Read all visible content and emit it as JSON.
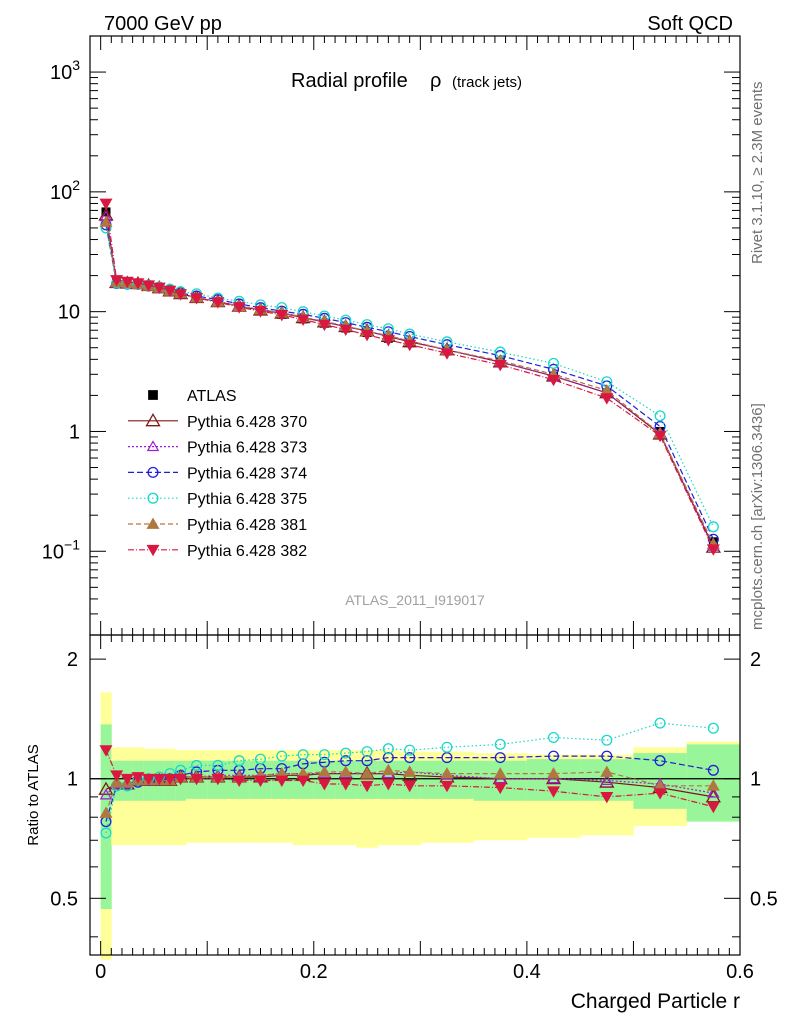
{
  "header": {
    "left": "7000 GeV pp",
    "right": "Soft QCD"
  },
  "side_labels": {
    "rivet": "Rivet 3.1.10, ≥ 2.3M events",
    "mcplots": "mcplots.cern.ch [arXiv:1306.3436]"
  },
  "chart_data": [
    {
      "type": "line",
      "panel": "main",
      "title": "Radial profile",
      "title_symbol": "ρ",
      "title_suffix": "(track jets)",
      "analysis_label": "ATLAS_2011_I919017",
      "yscale": "log",
      "xlim": [
        -0.01,
        0.6
      ],
      "ylim": [
        0.02,
        2000
      ],
      "ytick_labels": [
        {
          "value": 1000,
          "base": "10",
          "exp": "3"
        },
        {
          "value": 100,
          "base": "10",
          "exp": "2"
        },
        {
          "value": 10,
          "base": "10",
          "exp": ""
        },
        {
          "value": 1,
          "base": "1",
          "exp": ""
        },
        {
          "value": 0.1,
          "base": "10",
          "exp": "−1"
        }
      ],
      "x": [
        0.005,
        0.015,
        0.025,
        0.035,
        0.045,
        0.055,
        0.065,
        0.075,
        0.09,
        0.11,
        0.13,
        0.15,
        0.17,
        0.19,
        0.21,
        0.23,
        0.25,
        0.27,
        0.29,
        0.325,
        0.375,
        0.425,
        0.475,
        0.525,
        0.575
      ],
      "series": [
        {
          "name": "ATLAS",
          "color": "#000000",
          "marker": "filled-square",
          "dash": "none",
          "values": [
            68,
            18,
            17.8,
            17.2,
            16.6,
            15.9,
            15.0,
            14.0,
            13.0,
            12.0,
            11.0,
            10.2,
            9.5,
            8.7,
            8.0,
            7.3,
            6.7,
            6.0,
            5.5,
            4.7,
            3.8,
            2.9,
            2.1,
            1.0,
            0.12
          ]
        },
        {
          "name": "Pythia 6.428 370",
          "color": "#7f1818",
          "marker": "open-triangle-up",
          "dash": "none",
          "values": [
            64,
            17.5,
            17.3,
            17.1,
            16.5,
            15.8,
            14.9,
            14.1,
            13.1,
            12.1,
            11.1,
            10.3,
            9.7,
            8.9,
            8.2,
            7.5,
            6.9,
            6.2,
            5.6,
            4.8,
            3.8,
            2.9,
            2.1,
            0.95,
            0.108
          ]
        },
        {
          "name": "Pythia 6.428 373",
          "color": "#9b1fd8",
          "marker": "open-triangle-up-small",
          "dash": "2,2",
          "values": [
            62,
            17.4,
            17.2,
            17.0,
            16.4,
            15.8,
            14.9,
            14.1,
            13.1,
            12.2,
            11.2,
            10.4,
            9.8,
            9.0,
            8.2,
            7.5,
            6.9,
            6.2,
            5.7,
            4.8,
            3.8,
            2.9,
            2.1,
            0.97,
            0.11
          ]
        },
        {
          "name": "Pythia 6.428 374",
          "color": "#1f1fd8",
          "marker": "open-circle",
          "dash": "6,3",
          "values": [
            53,
            17.2,
            17.0,
            16.9,
            16.4,
            15.8,
            15.0,
            14.3,
            13.5,
            12.6,
            11.6,
            10.8,
            10.1,
            9.5,
            8.8,
            8.1,
            7.4,
            6.8,
            6.2,
            5.3,
            4.3,
            3.3,
            2.4,
            1.1,
            0.126
          ]
        },
        {
          "name": "Pythia 6.428 375",
          "color": "#18d8c8",
          "marker": "open-circle",
          "dash": "1.5,2.5",
          "values": [
            50,
            17.3,
            17.1,
            17.0,
            16.6,
            16.1,
            15.4,
            14.7,
            14.1,
            13.0,
            12.2,
            11.4,
            10.8,
            10.0,
            9.2,
            8.5,
            7.8,
            7.2,
            6.5,
            5.6,
            4.6,
            3.7,
            2.6,
            1.35,
            0.16
          ]
        },
        {
          "name": "Pythia 6.428 381",
          "color": "#b07840",
          "marker": "filled-triangle-up",
          "dash": "5,3",
          "values": [
            56,
            17.6,
            17.4,
            17.0,
            16.4,
            15.8,
            14.9,
            14.2,
            13.1,
            12.1,
            11.1,
            10.4,
            9.8,
            9.0,
            8.3,
            7.6,
            6.9,
            6.3,
            5.7,
            4.8,
            3.9,
            3.0,
            2.2,
            0.96,
            0.115
          ]
        },
        {
          "name": "Pythia 6.428 382",
          "color": "#d81840",
          "marker": "filled-triangle-down",
          "dash": "6,2,1,2",
          "values": [
            80,
            18.4,
            17.8,
            17.3,
            16.6,
            15.9,
            15.0,
            14.0,
            13.0,
            12.0,
            10.9,
            10.1,
            9.4,
            8.6,
            7.8,
            7.1,
            6.4,
            5.8,
            5.3,
            4.5,
            3.6,
            2.7,
            1.9,
            0.92,
            0.104
          ]
        }
      ],
      "legend_position": "left-middle"
    },
    {
      "type": "line",
      "panel": "ratio",
      "ylabel": "Ratio to ATLAS",
      "xlabel": "Charged Particle r",
      "xlim": [
        -0.01,
        0.6
      ],
      "ylim": [
        0.36,
        2.3
      ],
      "yscale": "log",
      "ytick_labels": [
        {
          "value": 2,
          "label": "2"
        },
        {
          "value": 1,
          "label": "1"
        },
        {
          "value": 0.5,
          "label": "0.5"
        }
      ],
      "xtick_labels": [
        {
          "value": 0,
          "label": "0"
        },
        {
          "value": 0.2,
          "label": "0.2"
        },
        {
          "value": 0.4,
          "label": "0.4"
        },
        {
          "value": 0.6,
          "label": "0.6"
        }
      ],
      "bin_edges": [
        0.0,
        0.01,
        0.02,
        0.03,
        0.04,
        0.05,
        0.06,
        0.07,
        0.08,
        0.1,
        0.12,
        0.14,
        0.16,
        0.18,
        0.2,
        0.22,
        0.24,
        0.26,
        0.28,
        0.3,
        0.35,
        0.4,
        0.45,
        0.5,
        0.55,
        0.6
      ],
      "band_yellow": {
        "lo": [
          0.35,
          0.68,
          0.68,
          0.68,
          0.68,
          0.68,
          0.68,
          0.68,
          0.69,
          0.69,
          0.69,
          0.69,
          0.69,
          0.68,
          0.68,
          0.68,
          0.67,
          0.68,
          0.68,
          0.69,
          0.7,
          0.71,
          0.72,
          0.76,
          0.78
        ],
        "hi": [
          1.65,
          1.2,
          1.2,
          1.2,
          1.19,
          1.19,
          1.19,
          1.18,
          1.18,
          1.18,
          1.18,
          1.18,
          1.18,
          1.18,
          1.18,
          1.18,
          1.18,
          1.18,
          1.17,
          1.17,
          1.16,
          1.15,
          1.15,
          1.2,
          1.24
        ]
      },
      "band_green": {
        "lo": [
          0.47,
          0.88,
          0.88,
          0.88,
          0.88,
          0.88,
          0.88,
          0.88,
          0.89,
          0.89,
          0.89,
          0.89,
          0.89,
          0.89,
          0.89,
          0.89,
          0.89,
          0.89,
          0.89,
          0.89,
          0.88,
          0.88,
          0.88,
          0.84,
          0.78
        ],
        "hi": [
          1.37,
          1.11,
          1.11,
          1.11,
          1.11,
          1.11,
          1.11,
          1.11,
          1.11,
          1.11,
          1.11,
          1.11,
          1.11,
          1.11,
          1.11,
          1.11,
          1.11,
          1.11,
          1.11,
          1.11,
          1.11,
          1.12,
          1.12,
          1.16,
          1.22
        ]
      },
      "series": [
        {
          "name": "Pythia 6.428 370",
          "values": [
            0.94,
            0.97,
            0.97,
            0.99,
            0.99,
            0.99,
            0.99,
            1.01,
            1.01,
            1.01,
            1.01,
            1.01,
            1.02,
            1.02,
            1.03,
            1.03,
            1.03,
            1.03,
            1.02,
            1.01,
            1.0,
            1.0,
            0.98,
            0.95,
            0.9
          ]
        },
        {
          "name": "Pythia 6.428 373",
          "values": [
            0.91,
            0.97,
            0.97,
            0.99,
            0.99,
            0.99,
            0.99,
            1.01,
            1.01,
            1.02,
            1.02,
            1.02,
            1.03,
            1.03,
            1.03,
            1.03,
            1.03,
            1.03,
            1.04,
            1.02,
            1.0,
            1.0,
            0.99,
            0.97,
            0.92
          ]
        },
        {
          "name": "Pythia 6.428 374",
          "values": [
            0.78,
            0.96,
            0.96,
            0.98,
            0.99,
            0.99,
            1.0,
            1.02,
            1.04,
            1.05,
            1.05,
            1.06,
            1.06,
            1.09,
            1.1,
            1.11,
            1.11,
            1.13,
            1.13,
            1.13,
            1.13,
            1.14,
            1.14,
            1.11,
            1.05
          ]
        },
        {
          "name": "Pythia 6.428 375",
          "values": [
            0.73,
            0.96,
            0.96,
            0.99,
            1.0,
            1.01,
            1.03,
            1.05,
            1.08,
            1.08,
            1.11,
            1.12,
            1.14,
            1.15,
            1.15,
            1.16,
            1.17,
            1.19,
            1.18,
            1.2,
            1.22,
            1.27,
            1.25,
            1.38,
            1.34
          ]
        },
        {
          "name": "Pythia 6.428 381",
          "values": [
            0.82,
            0.98,
            0.98,
            0.99,
            0.99,
            0.99,
            0.99,
            1.01,
            1.01,
            1.01,
            1.01,
            1.02,
            1.03,
            1.03,
            1.04,
            1.04,
            1.03,
            1.05,
            1.04,
            1.03,
            1.03,
            1.03,
            1.04,
            0.96,
            0.96
          ]
        },
        {
          "name": "Pythia 6.428 382",
          "values": [
            1.18,
            1.02,
            1.0,
            1.01,
            1.0,
            1.0,
            1.0,
            1.0,
            1.0,
            1.0,
            0.99,
            0.99,
            0.99,
            0.99,
            0.97,
            0.97,
            0.96,
            0.97,
            0.96,
            0.96,
            0.95,
            0.93,
            0.9,
            0.92,
            0.85
          ]
        }
      ]
    }
  ]
}
